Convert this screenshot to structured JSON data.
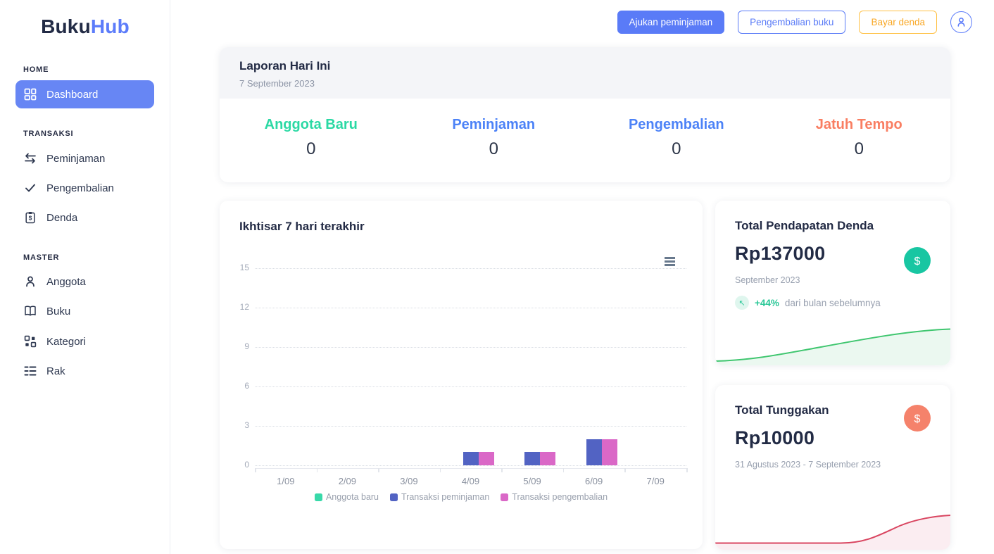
{
  "brand": {
    "primary": "Buku",
    "accent": "Hub"
  },
  "icons": {
    "dollar": "$",
    "trend_up": "↖"
  },
  "sidebar": {
    "sections": [
      {
        "label": "HOME",
        "items": [
          {
            "label": "Dashboard",
            "icon": "dashboard-icon",
            "active": true
          }
        ]
      },
      {
        "label": "TRANSAKSI",
        "items": [
          {
            "label": "Peminjaman",
            "icon": "swap-arrows-icon"
          },
          {
            "label": "Pengembalian",
            "icon": "check-icon"
          },
          {
            "label": "Denda",
            "icon": "clipboard-dollar-icon"
          }
        ]
      },
      {
        "label": "MASTER",
        "items": [
          {
            "label": "Anggota",
            "icon": "person-icon"
          },
          {
            "label": "Buku",
            "icon": "book-icon"
          },
          {
            "label": "Kategori",
            "icon": "category-grid-icon"
          },
          {
            "label": "Rak",
            "icon": "shelf-rows-icon"
          }
        ]
      }
    ]
  },
  "topbar": {
    "primary_button": "Ajukan peminjaman",
    "secondary_button": "Pengembalian buku",
    "tertiary_button": "Bayar denda",
    "primary_color": "#5A7BF7",
    "tertiary_color": "#F9A826"
  },
  "report": {
    "title": "Laporan Hari Ini",
    "date": "7 September 2023",
    "stats": [
      {
        "label": "Anggota Baru",
        "value": "0",
        "color": "#2BD9A4"
      },
      {
        "label": "Peminjaman",
        "value": "0",
        "color": "#4C82F7"
      },
      {
        "label": "Pengembalian",
        "value": "0",
        "color": "#4C82F7"
      },
      {
        "label": "Jatuh Tempo",
        "value": "0",
        "color": "#F97E62"
      }
    ]
  },
  "chart_card": {
    "title": "Ikhtisar 7 hari terakhir"
  },
  "chart_data": {
    "type": "bar",
    "title": "Ikhtisar 7 hari terakhir",
    "categories": [
      "1/09",
      "2/09",
      "3/09",
      "4/09",
      "5/09",
      "6/09",
      "7/09"
    ],
    "series": [
      {
        "name": "Anggota baru",
        "color": "#38D9A9",
        "values": [
          0,
          0,
          0,
          0,
          0,
          0,
          0
        ]
      },
      {
        "name": "Transaksi peminjaman",
        "color": "#5263C3",
        "values": [
          0,
          0,
          0,
          1,
          1,
          2,
          0
        ]
      },
      {
        "name": "Transaksi pengembalian",
        "color": "#DA68C7",
        "values": [
          0,
          0,
          0,
          1,
          1,
          2,
          0
        ]
      }
    ],
    "y_ticks": [
      15,
      12,
      9,
      6,
      3,
      0
    ],
    "ylim": [
      0,
      15
    ],
    "xlabel": "",
    "ylabel": "",
    "grid": "dotted-horizontal",
    "legend_position": "bottom"
  },
  "income_card": {
    "title": "Total Pendapatan Denda",
    "amount": "Rp137000",
    "period": "September 2023",
    "delta": "+44%",
    "delta_note": "dari bulan sebelumnya",
    "accent_color": "#18C6A2",
    "line_color": "#3FC66F",
    "fill_color": "#EBF8F0"
  },
  "arrears_card": {
    "title": "Total Tunggakan",
    "amount": "Rp10000",
    "period": "31 Agustus 2023 - 7 September 2023",
    "accent_color": "#F5826B",
    "line_color": "#D94560",
    "fill_color": "#FBEDF1"
  }
}
